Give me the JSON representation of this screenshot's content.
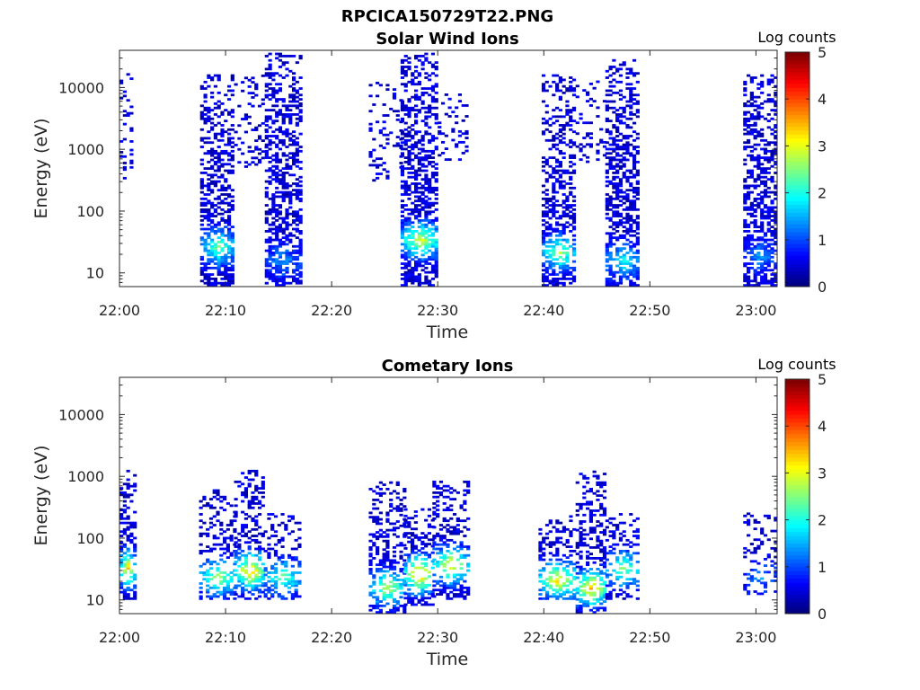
{
  "figure": {
    "title": "RPCICA150729T22.PNG"
  },
  "chart_data": [
    {
      "type": "heatmap",
      "title": "Solar Wind Ions",
      "xlabel": "Time",
      "ylabel": "Energy (eV)",
      "x_ticks": [
        "22:00",
        "22:10",
        "22:20",
        "22:30",
        "22:40",
        "22:50",
        "23:00"
      ],
      "xlim": [
        "22:00",
        "23:02"
      ],
      "y_scale": "log",
      "y_ticks": [
        "10",
        "100",
        "1000",
        "10000"
      ],
      "ylim": [
        6,
        40000
      ],
      "colorbar": {
        "label": "Log counts",
        "ticks": [
          "0",
          "1",
          "2",
          "3",
          "4",
          "5"
        ],
        "range": [
          0,
          5
        ],
        "colormap": "jet"
      },
      "bursts": [
        {
          "start_min": 0.0,
          "end_min": 1.0,
          "e_low": 300,
          "e_high": 18000,
          "density": 0.25,
          "peak_e": 0,
          "peak": 0
        },
        {
          "start_min": 7.6,
          "end_min": 10.8,
          "e_low": 6,
          "e_high": 15000,
          "density": 0.62,
          "peak_e": 25,
          "peak": 2.2
        },
        {
          "start_min": 10.8,
          "end_min": 13.7,
          "e_low": 500,
          "e_high": 15000,
          "density": 0.18,
          "peak_e": 0,
          "peak": 0
        },
        {
          "start_min": 13.7,
          "end_min": 17.0,
          "e_low": 6,
          "e_high": 35000,
          "density": 0.62,
          "peak_e": 15,
          "peak": 1.2
        },
        {
          "start_min": 23.5,
          "end_min": 26.5,
          "e_low": 300,
          "e_high": 12000,
          "density": 0.22,
          "peak_e": 0,
          "peak": 0
        },
        {
          "start_min": 26.5,
          "end_min": 30.0,
          "e_low": 6,
          "e_high": 35000,
          "density": 0.68,
          "peak_e": 32,
          "peak": 2.8
        },
        {
          "start_min": 30.0,
          "end_min": 32.8,
          "e_low": 600,
          "e_high": 8000,
          "density": 0.2,
          "peak_e": 0,
          "peak": 0
        },
        {
          "start_min": 39.8,
          "end_min": 43.0,
          "e_low": 6,
          "e_high": 16000,
          "density": 0.62,
          "peak_e": 20,
          "peak": 2.4
        },
        {
          "start_min": 43.0,
          "end_min": 45.8,
          "e_low": 600,
          "e_high": 12000,
          "density": 0.2,
          "peak_e": 0,
          "peak": 0
        },
        {
          "start_min": 45.8,
          "end_min": 49.0,
          "e_low": 6,
          "e_high": 28000,
          "density": 0.62,
          "peak_e": 15,
          "peak": 1.8
        },
        {
          "start_min": 58.8,
          "end_min": 61.7,
          "e_low": 6,
          "e_high": 16000,
          "density": 0.65,
          "peak_e": 18,
          "peak": 1.2
        }
      ]
    },
    {
      "type": "heatmap",
      "title": "Cometary Ions",
      "xlabel": "Time",
      "ylabel": "Energy (eV)",
      "x_ticks": [
        "22:00",
        "22:10",
        "22:20",
        "22:30",
        "22:40",
        "22:50",
        "23:00"
      ],
      "xlim": [
        "22:00",
        "23:02"
      ],
      "y_scale": "log",
      "y_ticks": [
        "10",
        "100",
        "1000",
        "10000"
      ],
      "ylim": [
        6,
        40000
      ],
      "colorbar": {
        "label": "Log counts",
        "ticks": [
          "0",
          "1",
          "2",
          "3",
          "4",
          "5"
        ],
        "range": [
          0,
          5
        ],
        "colormap": "jet"
      },
      "bursts": [
        {
          "start_min": 0.0,
          "end_min": 1.3,
          "e_low": 10,
          "e_high": 1200,
          "density": 0.55,
          "peak_e": 30,
          "peak": 3.4
        },
        {
          "start_min": 7.5,
          "end_min": 10.8,
          "e_low": 10,
          "e_high": 600,
          "density": 0.45,
          "peak_e": 22,
          "peak": 2.6
        },
        {
          "start_min": 10.8,
          "end_min": 13.6,
          "e_low": 10,
          "e_high": 1200,
          "density": 0.5,
          "peak_e": 28,
          "peak": 3.4
        },
        {
          "start_min": 13.6,
          "end_min": 17.0,
          "e_low": 10,
          "e_high": 250,
          "density": 0.45,
          "peak_e": 22,
          "peak": 2.2
        },
        {
          "start_min": 23.5,
          "end_min": 26.8,
          "e_low": 6,
          "e_high": 800,
          "density": 0.5,
          "peak_e": 15,
          "peak": 2.6
        },
        {
          "start_min": 26.8,
          "end_min": 29.5,
          "e_low": 8,
          "e_high": 300,
          "density": 0.5,
          "peak_e": 25,
          "peak": 3.6
        },
        {
          "start_min": 29.5,
          "end_min": 32.8,
          "e_low": 10,
          "e_high": 800,
          "density": 0.5,
          "peak_e": 35,
          "peak": 3.0
        },
        {
          "start_min": 39.5,
          "end_min": 43.0,
          "e_low": 10,
          "e_high": 250,
          "density": 0.5,
          "peak_e": 20,
          "peak": 3.2
        },
        {
          "start_min": 43.0,
          "end_min": 45.8,
          "e_low": 6,
          "e_high": 1200,
          "density": 0.55,
          "peak_e": 15,
          "peak": 3.4
        },
        {
          "start_min": 45.8,
          "end_min": 49.0,
          "e_low": 10,
          "e_high": 250,
          "density": 0.45,
          "peak_e": 30,
          "peak": 2.4
        },
        {
          "start_min": 58.8,
          "end_min": 61.8,
          "e_low": 12,
          "e_high": 250,
          "density": 0.35,
          "peak_e": 22,
          "peak": 1.2
        }
      ]
    }
  ]
}
